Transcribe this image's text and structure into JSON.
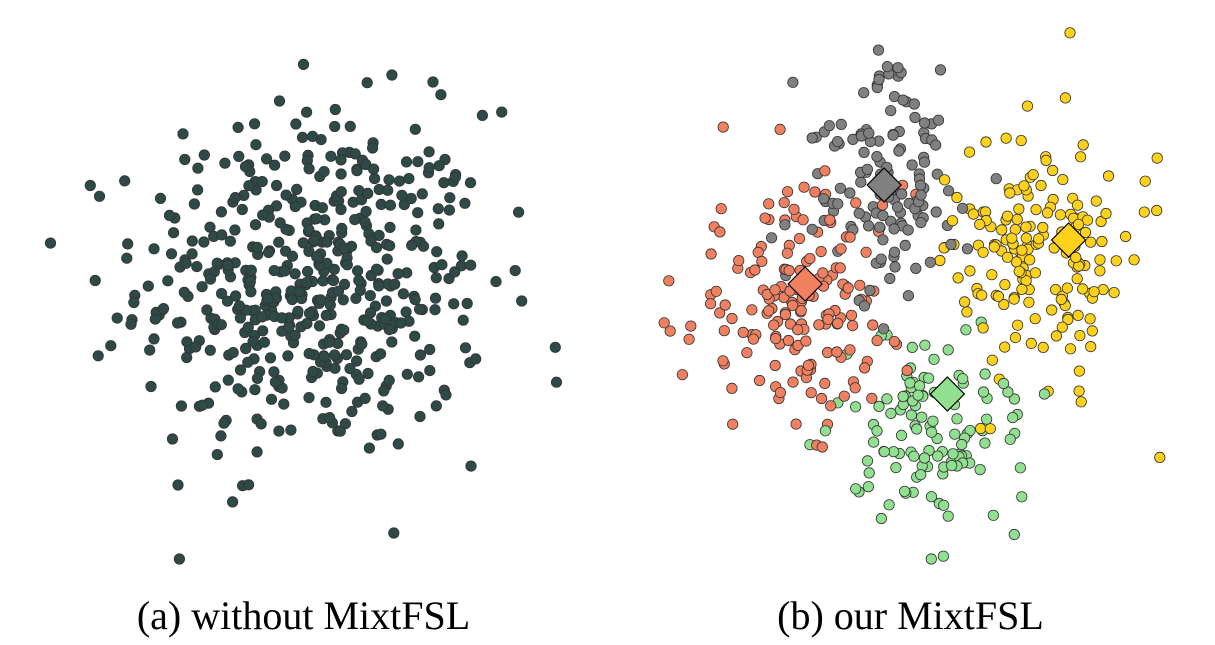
{
  "colors": {
    "single": "#2e4a47",
    "orange": "#f08060",
    "gray": "#808080",
    "green": "#90e090",
    "yellow": "#ffd11a",
    "outline": "#333333"
  },
  "chart_data": [
    {
      "type": "scatter",
      "caption": "(a) without MixtFSL",
      "xlim": [
        0,
        100
      ],
      "ylim": [
        0,
        100
      ],
      "point_count": 500,
      "clusters": [
        {
          "color": "#2e4a47",
          "center": [
            52,
            52
          ],
          "spread": [
            22,
            21
          ],
          "n": 500
        }
      ],
      "prototypes": []
    },
    {
      "type": "scatter",
      "caption": "(b) our MixtFSL",
      "xlim": [
        0,
        100
      ],
      "ylim": [
        0,
        100
      ],
      "clusters": [
        {
          "color": "#f08060",
          "center": [
            28,
            48
          ],
          "spread": [
            14,
            14
          ],
          "n": 170
        },
        {
          "color": "#808080",
          "center": [
            45,
            70
          ],
          "spread": [
            11,
            14
          ],
          "n": 135
        },
        {
          "color": "#ffd11a",
          "center": [
            75,
            58
          ],
          "spread": [
            11,
            15
          ],
          "n": 175
        },
        {
          "color": "#90e090",
          "center": [
            55,
            25
          ],
          "spread": [
            12,
            12
          ],
          "n": 120
        }
      ],
      "prototypes": [
        {
          "class": "gray",
          "color": "#808080",
          "x": 45,
          "y": 70
        },
        {
          "class": "orange",
          "color": "#f08060",
          "x": 30,
          "y": 52
        },
        {
          "class": "yellow",
          "color": "#ffd11a",
          "x": 80,
          "y": 60
        },
        {
          "class": "green",
          "color": "#90e090",
          "x": 57,
          "y": 32
        }
      ]
    }
  ]
}
